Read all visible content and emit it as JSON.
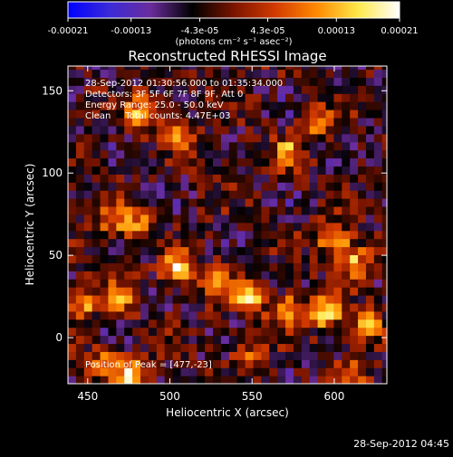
{
  "chart_data": {
    "type": "heatmap",
    "title": "Reconstructed RHESSI Image",
    "xlabel": "Heliocentric X (arcsec)",
    "ylabel": "Heliocentric Y (arcsec)",
    "xlim": [
      438,
      632
    ],
    "ylim": [
      -28,
      165
    ],
    "x_ticks": [
      450,
      500,
      550,
      600
    ],
    "y_ticks": [
      0,
      50,
      100,
      150
    ],
    "colorbar": {
      "range": [
        -0.00021,
        0.00021
      ],
      "ticks": [
        "-0.00021",
        "-0.00013",
        "-4.3e-05",
        "4.3e-05",
        "0.00013",
        "0.00021"
      ],
      "unit_label": "(photons cm⁻² s⁻¹ asec⁻²)",
      "colormap": [
        "#0000ff",
        "#3b2bd8",
        "#6a2c9c",
        "#000000",
        "#7a1400",
        "#d23a00",
        "#ff8a00",
        "#ffe84a",
        "#ffffff"
      ]
    },
    "annotations": [
      "28-Sep-2012 01:30:56.000 to 01:35:34.000",
      "Detectors: 3F 5F 6F 7F 8F 9F, Att 0",
      "Energy Range: 25.0 - 50.0 keV",
      "Clean     Total counts: 4.47E+03"
    ],
    "peak_label": "Position of Peak = [477,-23]",
    "peak": [
      477,
      -23
    ],
    "bright_features": [
      {
        "x": 483,
        "y": 137,
        "value": 0.00018
      },
      {
        "x": 507,
        "y": 125,
        "value": 0.00012
      },
      {
        "x": 572,
        "y": 113,
        "value": 0.00013
      },
      {
        "x": 590,
        "y": 130,
        "value": 0.00011
      },
      {
        "x": 465,
        "y": 72,
        "value": 0.00014
      },
      {
        "x": 480,
        "y": 70,
        "value": 0.00012
      },
      {
        "x": 600,
        "y": 60,
        "value": 0.00019
      },
      {
        "x": 612,
        "y": 47,
        "value": 0.00016
      },
      {
        "x": 447,
        "y": 22,
        "value": 0.00015
      },
      {
        "x": 470,
        "y": 25,
        "value": 0.00013
      },
      {
        "x": 505,
        "y": 42,
        "value": 0.00021
      },
      {
        "x": 528,
        "y": 35,
        "value": 0.00017
      },
      {
        "x": 548,
        "y": 25,
        "value": 0.00018
      },
      {
        "x": 570,
        "y": 18,
        "value": 0.00016
      },
      {
        "x": 595,
        "y": 15,
        "value": 0.00019
      },
      {
        "x": 620,
        "y": 8,
        "value": 0.00015
      },
      {
        "x": 477,
        "y": -23,
        "value": 0.00021
      },
      {
        "x": 460,
        "y": -15,
        "value": 0.00013
      },
      {
        "x": 548,
        "y": -10,
        "value": 0.0001
      },
      {
        "x": 610,
        "y": -22,
        "value": 0.00011
      }
    ]
  },
  "footer": {
    "timestamp": "28-Sep-2012 04:45"
  }
}
